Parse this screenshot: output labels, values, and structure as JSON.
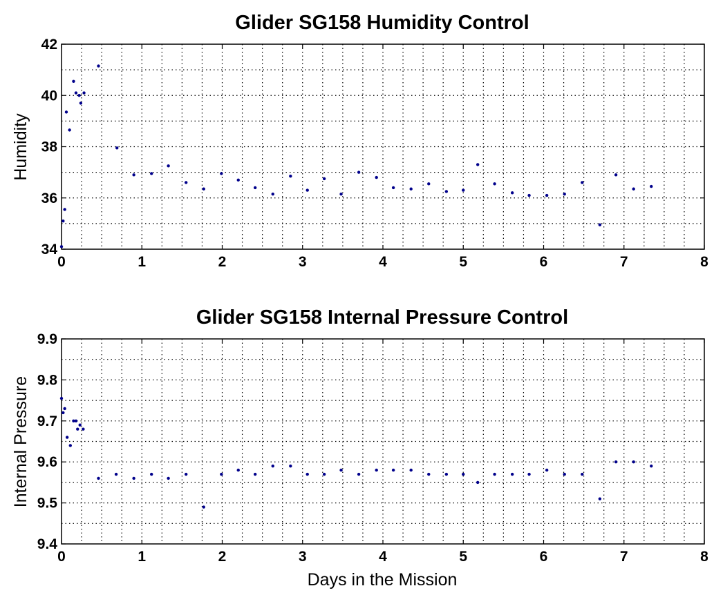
{
  "chart_data": [
    {
      "type": "scatter",
      "title": "Glider SG158 Humidity Control",
      "xlabel": "",
      "ylabel": "Humidity",
      "xlim": [
        0,
        8
      ],
      "ylim": [
        34,
        42
      ],
      "x_ticks": [
        0,
        1,
        2,
        3,
        4,
        5,
        6,
        7,
        8
      ],
      "y_ticks": [
        34,
        36,
        38,
        40,
        42
      ],
      "x_tick_labels": [
        "0",
        "1",
        "2",
        "3",
        "4",
        "5",
        "6",
        "7",
        "8"
      ],
      "y_tick_labels": [
        "34",
        "36",
        "38",
        "40",
        "42"
      ],
      "x_minor_step": 0.25,
      "y_minor_step": 1,
      "grid": true,
      "marker_color": "#00008b",
      "series": [
        {
          "x": [
            0.0,
            0.02,
            0.04,
            0.06,
            0.1,
            0.15,
            0.18,
            0.22,
            0.24,
            0.28,
            0.46,
            0.69,
            0.9,
            1.12,
            1.33,
            1.55,
            1.77,
            1.99,
            2.2,
            2.41,
            2.63,
            2.85,
            3.06,
            3.27,
            3.48,
            3.7,
            3.92,
            4.13,
            4.35,
            4.57,
            4.79,
            5.0,
            5.18,
            5.39,
            5.61,
            5.82,
            6.04,
            6.26,
            6.48,
            6.7,
            6.9,
            7.12,
            7.34
          ],
          "y": [
            34.1,
            35.1,
            35.55,
            39.35,
            38.65,
            40.55,
            40.1,
            40.0,
            39.7,
            40.1,
            41.15,
            37.95,
            36.9,
            36.95,
            37.25,
            36.6,
            36.35,
            36.95,
            36.7,
            36.4,
            36.15,
            36.85,
            36.3,
            36.75,
            36.15,
            37.0,
            36.8,
            36.4,
            36.35,
            36.55,
            36.25,
            36.3,
            37.3,
            36.55,
            36.2,
            36.1,
            36.1,
            36.15,
            36.6,
            34.95,
            36.9,
            36.35,
            36.45
          ]
        }
      ]
    },
    {
      "type": "scatter",
      "title": "Glider SG158 Internal Pressure Control",
      "xlabel": "Days in the Mission",
      "ylabel": "Internal Pressure",
      "xlim": [
        0,
        8
      ],
      "ylim": [
        9.4,
        9.9
      ],
      "x_ticks": [
        0,
        1,
        2,
        3,
        4,
        5,
        6,
        7,
        8
      ],
      "y_ticks": [
        9.4,
        9.5,
        9.6,
        9.7,
        9.8,
        9.9
      ],
      "x_tick_labels": [
        "0",
        "1",
        "2",
        "3",
        "4",
        "5",
        "6",
        "7",
        "8"
      ],
      "y_tick_labels": [
        "9.4",
        "9.5",
        "9.6",
        "9.7",
        "9.8",
        "9.9"
      ],
      "x_minor_step": 0.25,
      "y_minor_step": 0.05,
      "grid": true,
      "marker_color": "#00008b",
      "series": [
        {
          "x": [
            0.0,
            0.02,
            0.04,
            0.07,
            0.11,
            0.15,
            0.18,
            0.2,
            0.23,
            0.27,
            0.46,
            0.68,
            0.9,
            1.12,
            1.33,
            1.55,
            1.77,
            1.99,
            2.2,
            2.41,
            2.63,
            2.85,
            3.06,
            3.27,
            3.48,
            3.7,
            3.92,
            4.13,
            4.35,
            4.57,
            4.79,
            5.0,
            5.18,
            5.39,
            5.61,
            5.82,
            6.04,
            6.26,
            6.48,
            6.7,
            6.9,
            7.12,
            7.34
          ],
          "y": [
            9.755,
            9.72,
            9.73,
            9.66,
            9.64,
            9.7,
            9.7,
            9.68,
            9.69,
            9.68,
            9.56,
            9.57,
            9.56,
            9.57,
            9.56,
            9.57,
            9.49,
            9.57,
            9.58,
            9.57,
            9.59,
            9.59,
            9.57,
            9.57,
            9.58,
            9.57,
            9.58,
            9.58,
            9.58,
            9.57,
            9.57,
            9.57,
            9.55,
            9.57,
            9.57,
            9.57,
            9.58,
            9.57,
            9.57,
            9.51,
            9.6,
            9.6,
            9.59
          ]
        }
      ]
    }
  ]
}
